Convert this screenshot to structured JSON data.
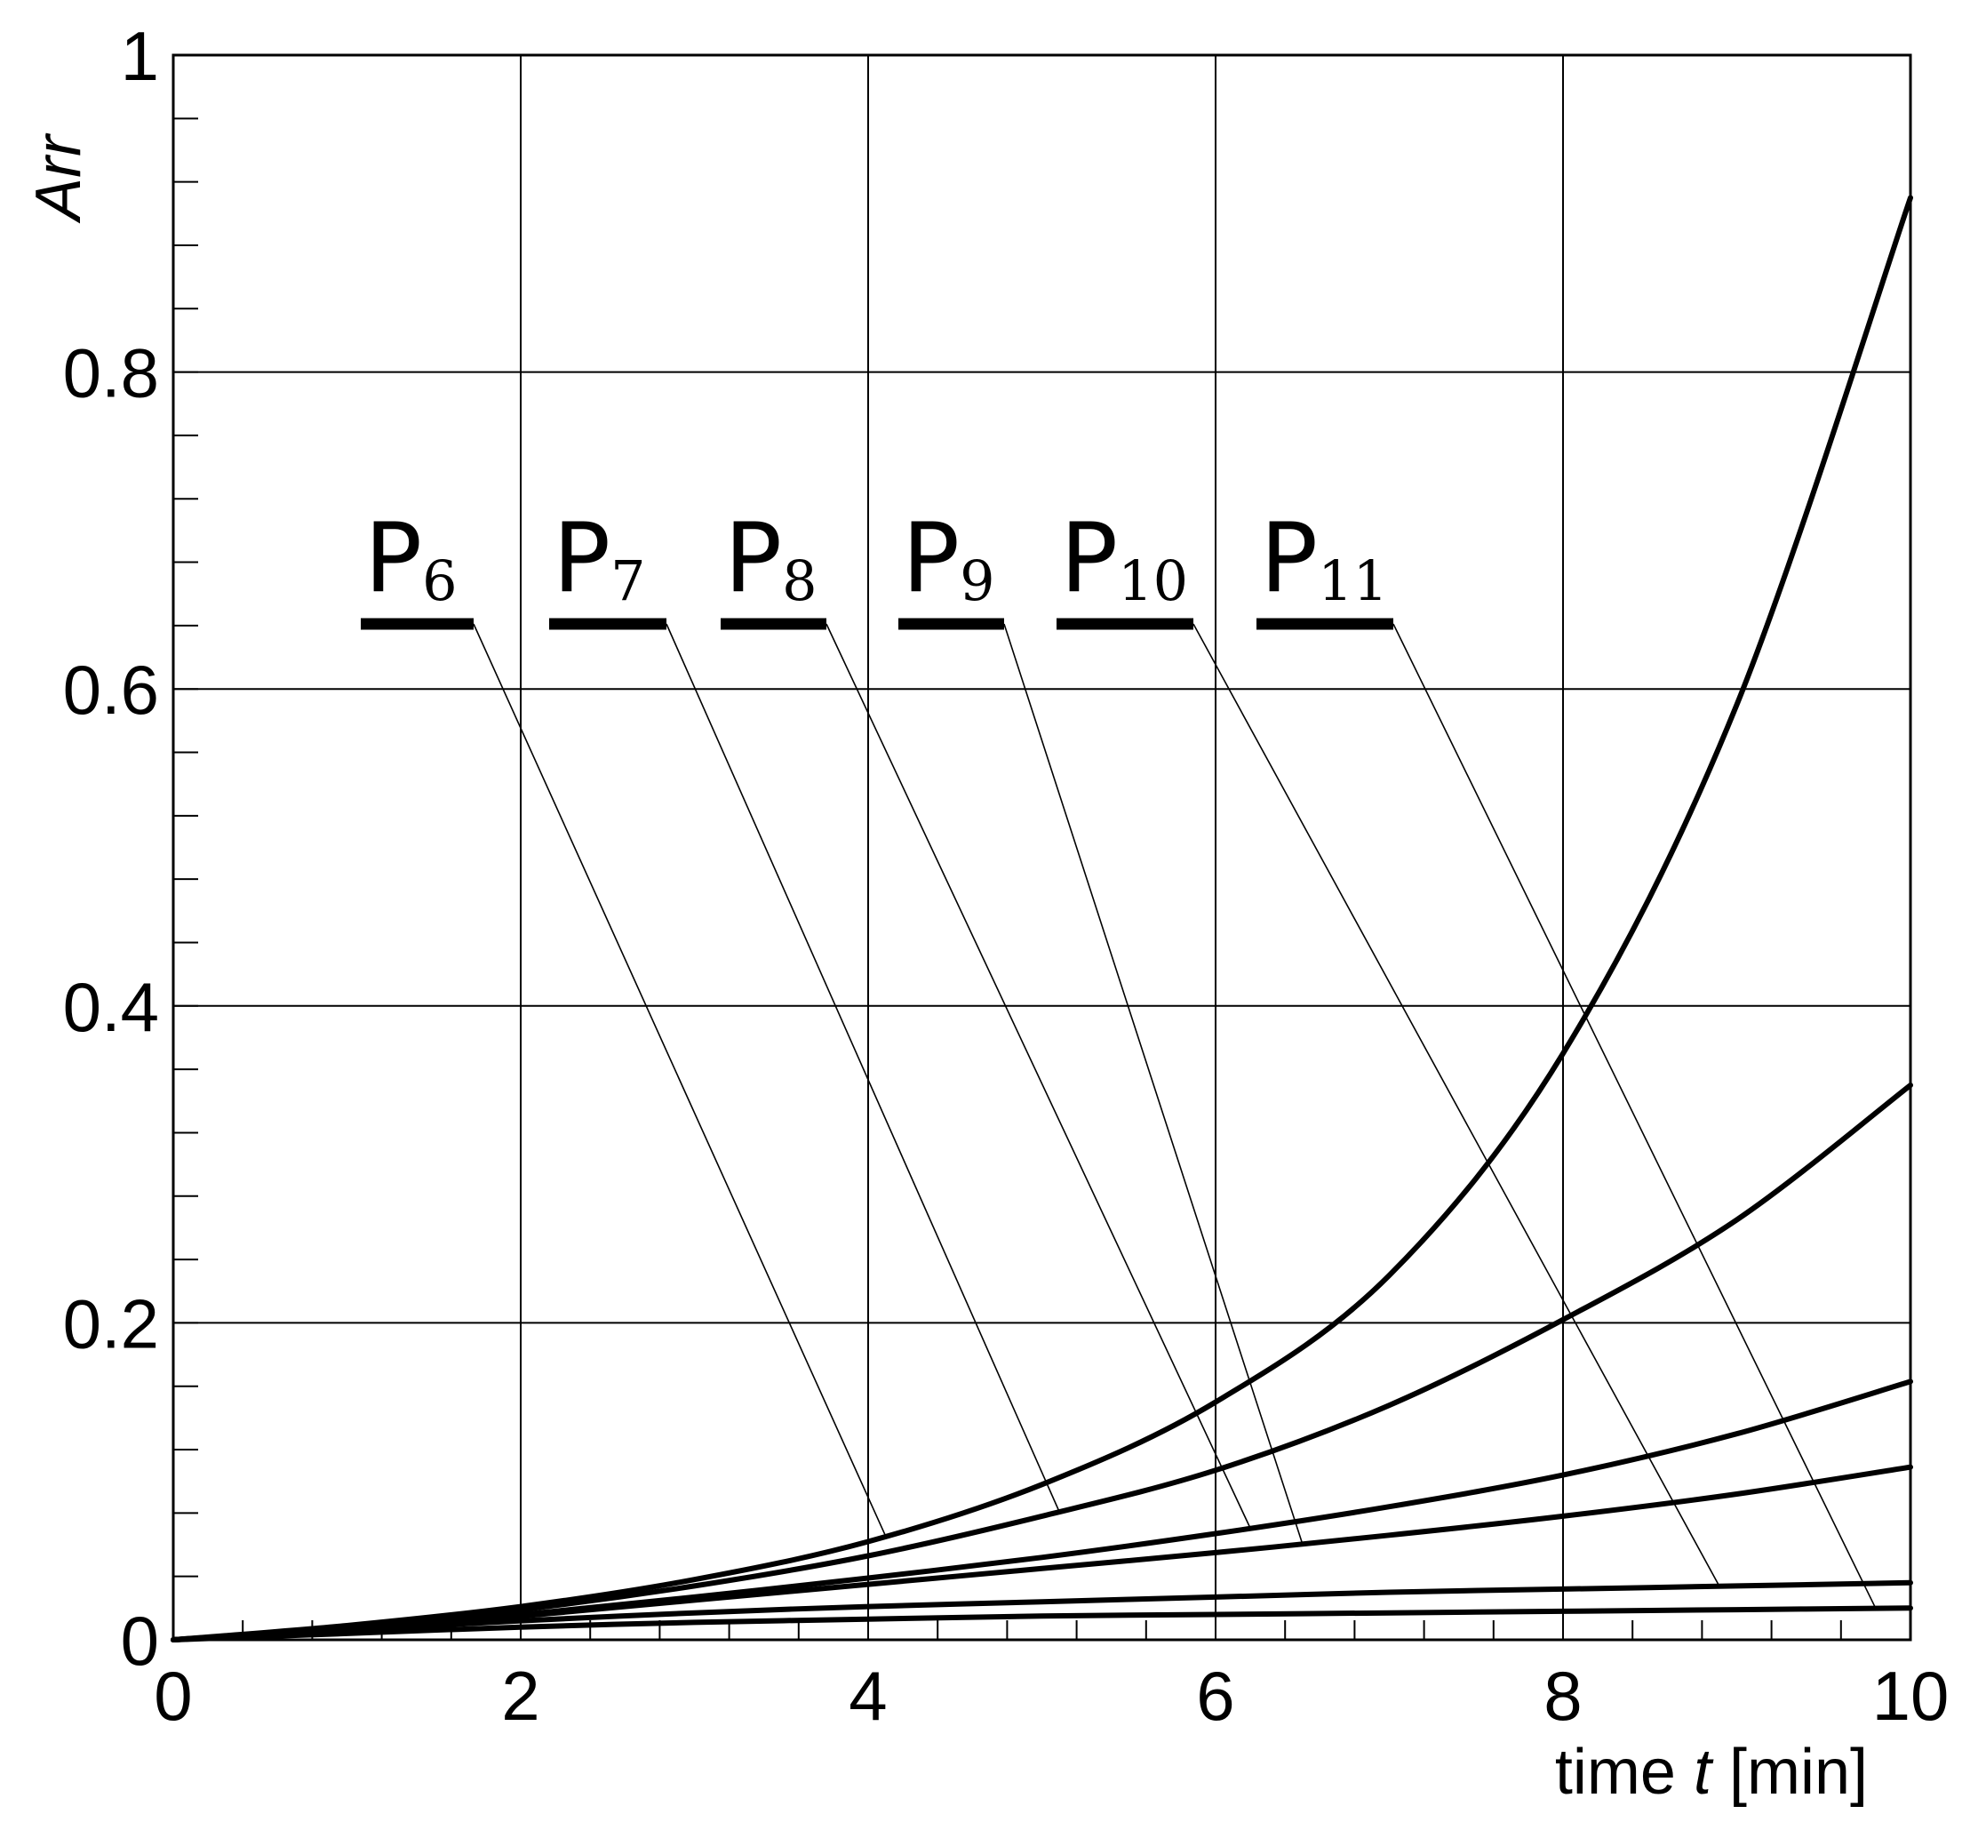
{
  "chart_data": {
    "type": "line",
    "title": "",
    "xlabel_prefix": "time ",
    "xlabel_var": "t",
    "xlabel_suffix": " [min]",
    "ylabel": "Arr",
    "xlim": [
      0,
      10
    ],
    "ylim": [
      0,
      1
    ],
    "x_major_ticks": [
      0,
      2,
      4,
      6,
      8,
      10
    ],
    "y_major_ticks": [
      0,
      0.2,
      0.4,
      0.6,
      0.8,
      1
    ],
    "x_tick_labels": [
      "0",
      "2",
      "4",
      "6",
      "8",
      "10"
    ],
    "y_tick_labels": [
      "0",
      "0.2",
      "0.4",
      "0.6",
      "0.8",
      "1"
    ],
    "grid": true,
    "series": [
      {
        "name": "P6",
        "label_main": "P",
        "label_sub": "6",
        "x": [
          0,
          1,
          2,
          3,
          4,
          5,
          6,
          7,
          8,
          9,
          10
        ],
        "y": [
          0,
          0.009,
          0.021,
          0.038,
          0.062,
          0.098,
          0.15,
          0.23,
          0.37,
          0.59,
          0.91
        ]
      },
      {
        "name": "P7",
        "label_main": "P",
        "label_sub": "7",
        "x": [
          0,
          1,
          2,
          3,
          4,
          5,
          6,
          7,
          8,
          9,
          10
        ],
        "y": [
          0,
          0.008,
          0.019,
          0.034,
          0.053,
          0.078,
          0.107,
          0.148,
          0.202,
          0.265,
          0.35
        ]
      },
      {
        "name": "P8",
        "label_main": "P",
        "label_sub": "8",
        "x": [
          0,
          1,
          2,
          3,
          4,
          5,
          6,
          7,
          8,
          9,
          10
        ],
        "y": [
          0,
          0.007,
          0.016,
          0.027,
          0.039,
          0.052,
          0.067,
          0.084,
          0.104,
          0.13,
          0.163
        ]
      },
      {
        "name": "P9",
        "label_main": "P",
        "label_sub": "9",
        "x": [
          0,
          1,
          2,
          3,
          4,
          5,
          6,
          7,
          8,
          9,
          10
        ],
        "y": [
          0,
          0.007,
          0.015,
          0.025,
          0.035,
          0.045,
          0.055,
          0.066,
          0.078,
          0.092,
          0.109
        ]
      },
      {
        "name": "P10",
        "label_main": "P",
        "label_sub": "10",
        "x": [
          0,
          1,
          2,
          3,
          4,
          5,
          6,
          7,
          8,
          9,
          10
        ],
        "y": [
          0,
          0.006,
          0.012,
          0.017,
          0.021,
          0.024,
          0.027,
          0.03,
          0.032,
          0.034,
          0.036
        ]
      },
      {
        "name": "P11",
        "label_main": "P",
        "label_sub": "11",
        "x": [
          0,
          1,
          2,
          3,
          4,
          5,
          6,
          7,
          8,
          9,
          10
        ],
        "y": [
          0,
          0.004,
          0.008,
          0.011,
          0.013,
          0.015,
          0.016,
          0.017,
          0.018,
          0.019,
          0.02
        ]
      }
    ]
  }
}
